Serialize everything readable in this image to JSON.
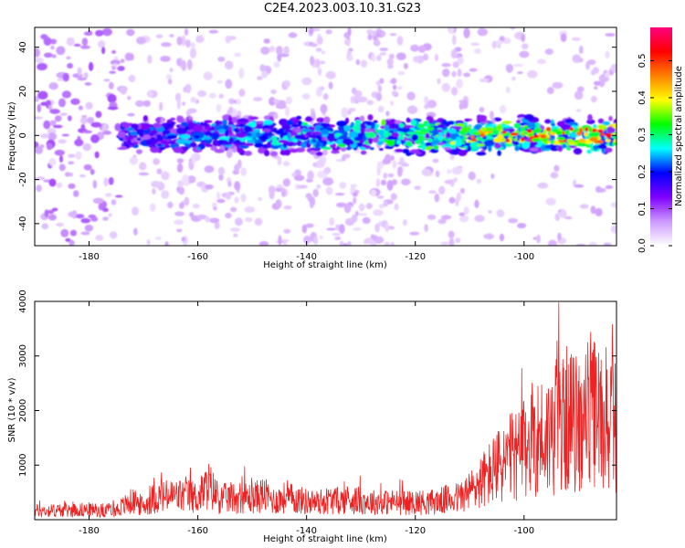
{
  "page": {
    "title": "C2E4.2023.003.10.31.G23"
  },
  "chart_data": [
    {
      "type": "heatmap",
      "title": "",
      "xlabel": "Height of straight line (km)",
      "ylabel": "Frequency (Hz)",
      "xlim": [
        -190,
        -83
      ],
      "ylim": [
        -50,
        49
      ],
      "xticks": [
        -180,
        -160,
        -140,
        -120,
        -100
      ],
      "yticks": [
        -40,
        -20,
        0,
        20,
        40
      ],
      "colorbar": {
        "label": "Normalized spectral amplitude",
        "range": [
          0.0,
          0.59
        ],
        "ticks": [
          0.0,
          0.1,
          0.2,
          0.3,
          0.4,
          0.5
        ],
        "colors": [
          "#ffffff",
          "#cc99ff",
          "#7f00ff",
          "#0000ff",
          "#00ffff",
          "#00ff00",
          "#ffff00",
          "#ff8000",
          "#ff0000",
          "#ff0080"
        ]
      },
      "band_center_hz": 0,
      "band_halfwidth_hz": 9,
      "grid": false
    },
    {
      "type": "line",
      "title": "",
      "xlabel": "Height of straight line (km)",
      "ylabel": "SNR (10 * v/v)",
      "xlim": [
        -190,
        -83
      ],
      "ylim": [
        0,
        4000
      ],
      "xticks": [
        -180,
        -160,
        -140,
        -120,
        -100
      ],
      "yticks": [
        1000,
        2000,
        3000,
        4000
      ],
      "series": [
        {
          "color": "#ee2222",
          "x": [
            -190,
            -185,
            -180,
            -178,
            -175,
            -172,
            -170,
            -168,
            -165,
            -162,
            -160,
            -158,
            -156,
            -154,
            -152,
            -150,
            -148,
            -146,
            -144,
            -142,
            -140,
            -138,
            -136,
            -134,
            -132,
            -130,
            -128,
            -126,
            -124,
            -122,
            -120,
            -118,
            -116,
            -114,
            -112,
            -110,
            -108,
            -106,
            -104,
            -102,
            -100,
            -98,
            -96,
            -94,
            -92,
            -90,
            -88,
            -86,
            -84
          ],
          "y": [
            280,
            300,
            320,
            290,
            310,
            600,
            420,
            700,
            750,
            760,
            700,
            1100,
            650,
            700,
            720,
            680,
            800,
            600,
            700,
            650,
            580,
            550,
            620,
            600,
            650,
            600,
            560,
            550,
            570,
            520,
            560,
            550,
            580,
            650,
            700,
            900,
            1200,
            1500,
            1800,
            2000,
            2200,
            2700,
            2600,
            3000,
            3200,
            3000,
            3500,
            3200,
            3000
          ]
        }
      ],
      "grid": false
    }
  ]
}
